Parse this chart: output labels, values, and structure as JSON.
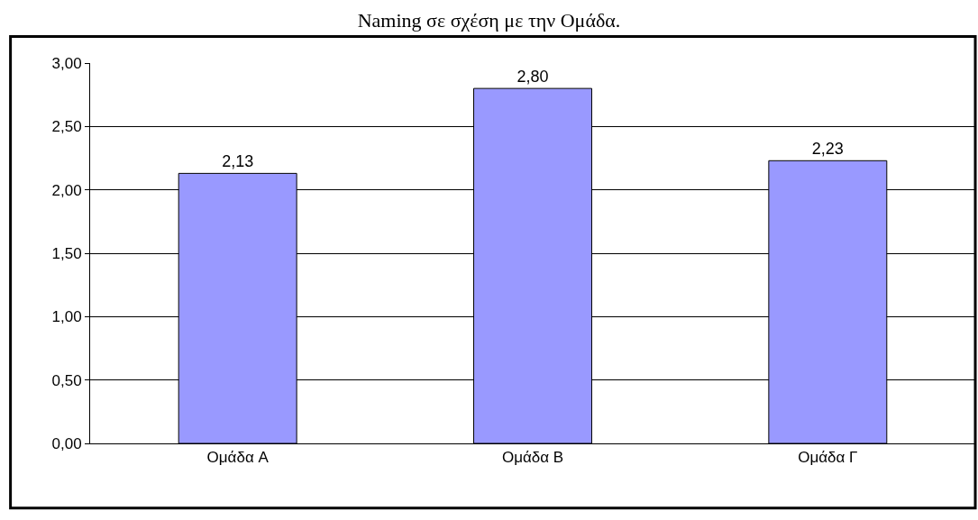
{
  "chart_data": {
    "type": "bar",
    "title": "Naming σε σχέση με την Ομάδα.",
    "categories": [
      "Ομάδα A",
      "Ομάδα B",
      "Ομάδα Γ"
    ],
    "values": [
      2.13,
      2.8,
      2.23
    ],
    "value_labels": [
      "2,13",
      "2,80",
      "2,23"
    ],
    "color": "#9999ff",
    "ylim": [
      0,
      3
    ],
    "yticks": [
      {
        "value": 0,
        "label": "0,00"
      },
      {
        "value": 0.5,
        "label": "0,50"
      },
      {
        "value": 1,
        "label": "1,00"
      },
      {
        "value": 1.5,
        "label": "1,50"
      },
      {
        "value": 2,
        "label": "2,00"
      },
      {
        "value": 2.5,
        "label": "2,50"
      },
      {
        "value": 3,
        "label": "3,00"
      }
    ],
    "grid": "y",
    "legend": false
  }
}
